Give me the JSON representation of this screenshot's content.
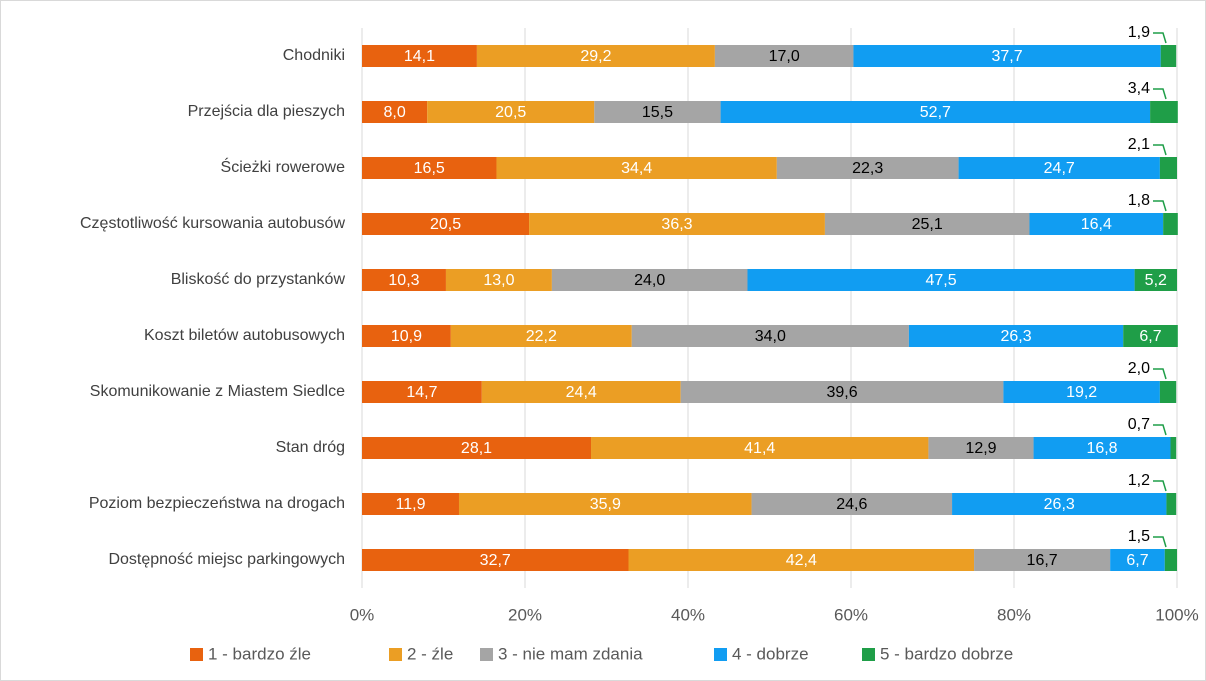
{
  "chart_data": {
    "type": "stacked-bar-horizontal",
    "categories": [
      "Chodniki",
      "Przejścia dla pieszych",
      "Ścieżki rowerowe",
      "Częstotliwość kursowania autobusów",
      "Bliskość do przystanków",
      "Koszt biletów autobusowych",
      "Skomunikowanie z Miastem Siedlce",
      "Stan dróg",
      "Poziom bezpieczeństwa na drogach",
      "Dostępność miejsc parkingowych"
    ],
    "series": [
      {
        "name": "1 - bardzo źle",
        "color": "#e8620f",
        "values": [
          14.1,
          8.0,
          16.5,
          20.5,
          10.3,
          10.9,
          14.7,
          28.1,
          11.9,
          32.7
        ],
        "value_labels": [
          "14,1",
          "8,0",
          "16,5",
          "20,5",
          "10,3",
          "10,9",
          "14,7",
          "28,1",
          "11,9",
          "32,7"
        ]
      },
      {
        "name": "2 - źle",
        "color": "#eb9e24",
        "values": [
          29.2,
          20.5,
          34.4,
          36.3,
          13.0,
          22.2,
          24.4,
          41.4,
          35.9,
          42.4
        ],
        "value_labels": [
          "29,2",
          "20,5",
          "34,4",
          "36,3",
          "13,0",
          "22,2",
          "24,4",
          "41,4",
          "35,9",
          "42,4"
        ]
      },
      {
        "name": "3 - nie mam zdania",
        "color": "#a5a5a5",
        "values": [
          17.0,
          15.5,
          22.3,
          25.1,
          24.0,
          34.0,
          39.6,
          12.9,
          24.6,
          16.7
        ],
        "value_labels": [
          "17,0",
          "15,5",
          "22,3",
          "25,1",
          "24,0",
          "34,0",
          "39,6",
          "12,9",
          "24,6",
          "16,7"
        ]
      },
      {
        "name": "4 - dobrze",
        "color": "#119df2",
        "values": [
          37.7,
          52.7,
          24.7,
          16.4,
          47.5,
          26.3,
          19.2,
          16.8,
          26.3,
          6.7
        ],
        "value_labels": [
          "37,7",
          "52,7",
          "24,7",
          "16,4",
          "47,5",
          "26,3",
          "19,2",
          "16,8",
          "26,3",
          "6,7"
        ]
      },
      {
        "name": "5 - bardzo dobrze",
        "color": "#1f9e48",
        "values": [
          1.9,
          3.4,
          2.1,
          1.8,
          5.2,
          6.7,
          2.0,
          0.7,
          1.2,
          1.5
        ],
        "value_labels": [
          "1,9",
          "3,4",
          "2,1",
          "1,8",
          "5,2",
          "6,7",
          "2,0",
          "0,7",
          "1,2",
          "1,5"
        ]
      }
    ],
    "xlim": [
      0,
      100
    ],
    "xticks": [
      {
        "value": 0,
        "label": "0%"
      },
      {
        "value": 20,
        "label": "20%"
      },
      {
        "value": 40,
        "label": "40%"
      },
      {
        "value": 60,
        "label": "60%"
      },
      {
        "value": 80,
        "label": "80%"
      },
      {
        "value": 100,
        "label": "100%"
      }
    ],
    "grid": true,
    "legend": "bottom"
  }
}
